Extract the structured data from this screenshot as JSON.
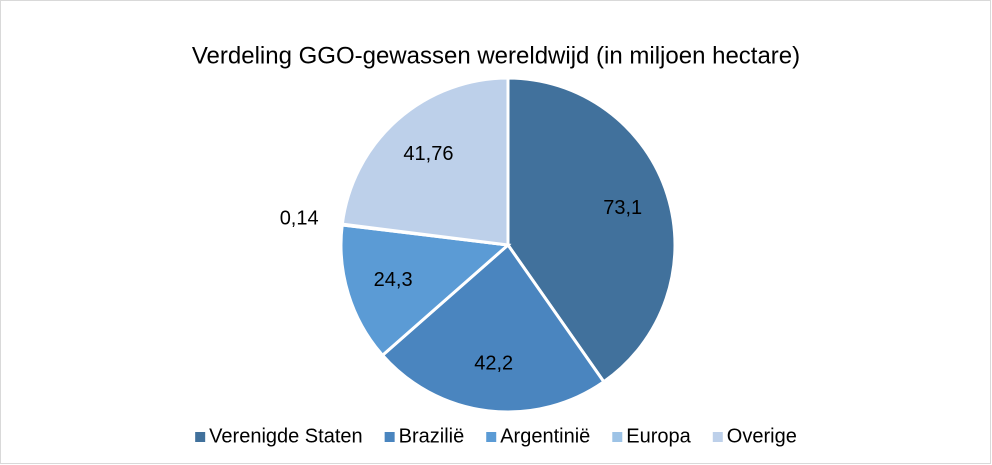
{
  "chart_data": {
    "type": "pie",
    "title": "Verdeling GGO-gewassen wereldwijd (in miljoen hectare)",
    "categories": [
      "Verenigde Staten",
      "Brazilië",
      "Argentinië",
      "Europa",
      "Overige"
    ],
    "values": [
      73.1,
      42.2,
      24.3,
      0.14,
      41.76
    ],
    "value_labels": [
      "73,1",
      "42,2",
      "24,3",
      "0,14",
      "41,76"
    ],
    "colors": [
      "#41719c",
      "#4a85bf",
      "#5b9bd5",
      "#9dc3e6",
      "#bdd0ea"
    ],
    "legend": "bottom"
  }
}
